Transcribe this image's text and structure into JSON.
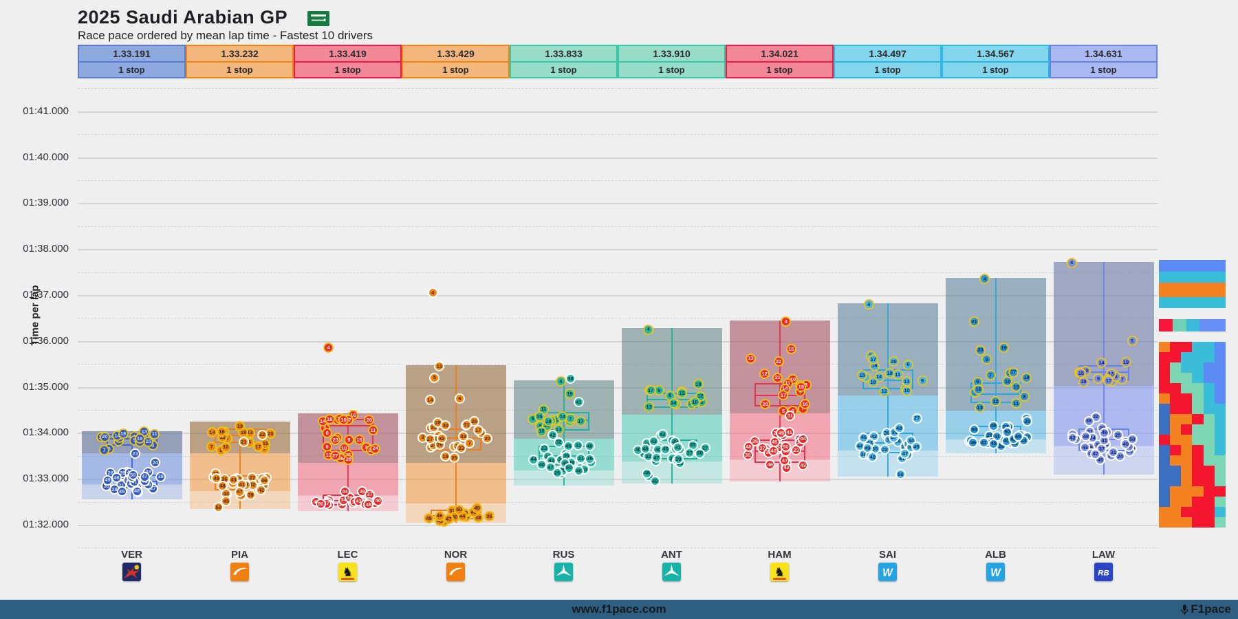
{
  "title": "2025 Saudi Arabian GP",
  "subtitle": "Race pace ordered by mean lap time - Fastest 10 drivers",
  "flag_icon": "saudi-arabia-flag",
  "footer": {
    "site": "www.f1pace.com",
    "brand": "F1pace",
    "brand_icon": "microphone-icon",
    "bar_color": "#2e5f80"
  },
  "tire_border_legend": {
    "medium": "#e7c31e",
    "hard": "#ffffff"
  },
  "chart_data": {
    "type": "boxplot-scatter",
    "title": "2025 Saudi Arabian GP",
    "subtitle": "Race pace ordered by mean lap time - Fastest 10 drivers",
    "y_axis": {
      "label": "Time per lap",
      "tick_labels": [
        "01:41.000",
        "01:40.000",
        "01:39.000",
        "01:38.000",
        "01:37.000",
        "01:36.000",
        "01:35.000",
        "01:34.000",
        "01:33.000",
        "01:32.000"
      ],
      "tick_seconds": [
        101,
        100,
        99,
        98,
        97,
        96,
        95,
        94,
        93,
        92
      ],
      "ylim_seconds": [
        91.5,
        101.5
      ],
      "grid": "solid at seconds, dashed at half-seconds"
    },
    "x_categories": [
      "VER",
      "PIA",
      "LEC",
      "NOR",
      "RUS",
      "ANT",
      "HAM",
      "SAI",
      "ALB",
      "LAW"
    ],
    "drivers": [
      {
        "code": "VER",
        "team": "red-bull",
        "mean": "1.33.191",
        "stops": "1 stop",
        "header": {
          "bg": "#8da9dd",
          "border": "#5b79d4"
        },
        "dot": {
          "fill": "#3457c0",
          "text": "#cfe0f8"
        },
        "box_color": "#3b64d8",
        "band1": "rgba(92,109,150,0.62)",
        "band2": "rgba(108,144,222,0.34)",
        "stints": [
          {
            "tire": "medium",
            "laps": [
              4,
              20
            ],
            "stats": [
              93.55,
              93.72,
              93.87,
              93.97,
              94.03
            ],
            "fixed": {
              "7": 93.62,
              "6": 93.65
            }
          },
          {
            "tire": "hard",
            "laps": [
              21,
              50
            ],
            "stats": [
              92.55,
              92.8,
              92.95,
              93.1,
              93.28
            ],
            "fixed": {
              "23": 93.55,
              "24": 93.35
            }
          }
        ]
      },
      {
        "code": "PIA",
        "team": "mclaren",
        "mean": "1.33.232",
        "stops": "1 stop",
        "header": {
          "bg": "#f3b77e",
          "border": "#ee8712"
        },
        "dot": {
          "fill": "#ef8512",
          "text": "#4a2a05"
        },
        "box_color": "#ee7d12",
        "band1": "rgba(150,108,62,0.60)",
        "band2": "rgba(242,148,54,0.32)",
        "stints": [
          {
            "tire": "medium",
            "laps": [
              4,
              20
            ],
            "stats": [
              93.55,
              93.78,
              93.95,
              94.1,
              94.25
            ],
            "fixed": {
              "9": 93.62,
              "5": 93.66,
              "7": 93.7
            }
          },
          {
            "tire": "hard",
            "laps": [
              21,
              50
            ],
            "stats": [
              92.35,
              92.75,
              92.92,
              93.08,
              93.28
            ],
            "fixed": {
              "21": 93.8,
              "22": 93.96,
              "45": 92.52,
              "50": 92.38
            }
          }
        ]
      },
      {
        "code": "LEC",
        "team": "ferrari",
        "mean": "1.33.419",
        "stops": "1 stop",
        "header": {
          "bg": "#f28798",
          "border": "#ec1a48"
        },
        "dot": {
          "fill": "#f22828",
          "text": "#ffecec"
        },
        "box_color": "#e8304c",
        "band1": "rgba(168,88,106,0.62)",
        "band2": "rgba(246,96,120,0.30)",
        "stints": [
          {
            "tire": "medium",
            "laps": [
              2,
              28
            ],
            "stats": [
              93.35,
              93.6,
              94.15,
              94.3,
              94.42
            ],
            "fixed": {
              "4": 95.85,
              "21": 93.9,
              "22": 93.62,
              "23": 93.85,
              "24": 93.66,
              "25": 93.52,
              "26": 93.44,
              "27": 93.5,
              "28": 93.42
            }
          },
          {
            "tire": "hard",
            "laps": [
              29,
              50
            ],
            "stats": [
              92.3,
              92.42,
              92.52,
              92.66,
              93.08
            ],
            "fixed": {
              "49": 92.5,
              "50": 92.45
            }
          }
        ]
      },
      {
        "code": "NOR",
        "team": "mclaren",
        "mean": "1.33.429",
        "stops": "1 stop",
        "header": {
          "bg": "#f3b77e",
          "border": "#ee8712"
        },
        "dot": {
          "fill": "#ef8512",
          "text": "#4a2a05"
        },
        "box_color": "#ee7d12",
        "band1": "rgba(150,108,62,0.60)",
        "band2": "rgba(242,148,54,0.32)",
        "stints": [
          {
            "tire": "hard",
            "laps": [
              4,
              33
            ],
            "stats": [
              93.35,
              93.62,
              93.88,
              94.1,
              95.48
            ],
            "fixed": {
              "4": 97.05,
              "13": 95.45,
              "5": 95.2,
              "6": 94.75,
              "14": 94.72
            }
          },
          {
            "tire": "medium",
            "laps": [
              34,
              50
            ],
            "stats": [
              92.05,
              92.12,
              92.2,
              92.33,
              92.46
            ],
            "fixed": {
              "41": 92.06,
              "43": 92.08
            }
          }
        ]
      },
      {
        "code": "RUS",
        "team": "mercedes",
        "mean": "1.33.833",
        "stops": "1 stop",
        "header": {
          "bg": "#97dcc6",
          "border": "#38c9a8"
        },
        "dot": {
          "fill": "#23b8a8",
          "text": "#08332c"
        },
        "box_color": "#1cb29a",
        "band1": "rgba(104,138,136,0.60)",
        "band2": "rgba(56,200,176,0.28)",
        "stints": [
          {
            "tire": "medium",
            "laps": [
              4,
              19
            ],
            "stats": [
              93.87,
              94.05,
              94.28,
              94.45,
              95.15
            ],
            "fixed": {
              "4": 95.12,
              "19": 94.85
            }
          },
          {
            "tire": "hard",
            "laps": [
              20,
              50
            ],
            "stats": [
              92.85,
              93.28,
              93.5,
              93.72,
              95.2
            ],
            "fixed": {
              "38": 95.18,
              "41": 94.67,
              "42": 93.95
            }
          }
        ]
      },
      {
        "code": "ANT",
        "team": "mercedes",
        "mean": "1.33.910",
        "stops": "1 stop",
        "header": {
          "bg": "#97dcc6",
          "border": "#38c9a8"
        },
        "dot": {
          "fill": "#23b8a8",
          "text": "#08332c"
        },
        "box_color": "#1cb29a",
        "band1": "rgba(104,138,136,0.60)",
        "band2": "rgba(56,200,176,0.28)",
        "stints": [
          {
            "tire": "medium",
            "laps": [
              4,
              18
            ],
            "stats": [
              94.4,
              94.55,
              94.72,
              94.88,
              96.28
            ],
            "fixed": {
              "4": 96.25,
              "18": 95.06,
              "17": 94.92
            }
          },
          {
            "tire": "hard",
            "laps": [
              19,
              50
            ],
            "stats": [
              92.9,
              93.42,
              93.62,
              93.86,
              94.05
            ],
            "fixed": {
              "49": 92.95,
              "44": 93.05,
              "46": 93.12
            }
          }
        ]
      },
      {
        "code": "HAM",
        "team": "ferrari",
        "mean": "1.34.021",
        "stops": "1 stop",
        "header": {
          "bg": "#f28798",
          "border": "#ec1a48"
        },
        "dot": {
          "fill": "#f22828",
          "text": "#ffecec"
        },
        "box_color": "#e8304c",
        "band1": "rgba(168,88,106,0.62)",
        "band2": "rgba(246,96,120,0.30)",
        "stints": [
          {
            "tire": "medium",
            "laps": [
              4,
              22
            ],
            "stats": [
              94.42,
              94.58,
              94.82,
              95.08,
              96.45
            ],
            "fixed": {
              "4": 96.42,
              "15": 95.82,
              "13": 95.62,
              "22": 95.55,
              "12": 95.28
            }
          },
          {
            "tire": "hard",
            "laps": [
              23,
              50
            ],
            "stats": [
              92.95,
              93.35,
              93.6,
              93.85,
              94.4
            ],
            "fixed": {
              "31": 94.37,
              "25": 94.0
            }
          }
        ]
      },
      {
        "code": "SAI",
        "team": "williams",
        "mean": "1.34.497",
        "stops": "1 stop",
        "header": {
          "bg": "#84d6ec",
          "border": "#2eb8e4"
        },
        "dot": {
          "fill": "#49b5e8",
          "text": "#0a2e48"
        },
        "box_color": "#2aa6de",
        "band1": "rgba(96,134,156,0.60)",
        "band2": "rgba(70,178,232,0.30)",
        "stints": [
          {
            "tire": "medium",
            "laps": [
              4,
              20
            ],
            "stats": [
              94.82,
              94.95,
              95.15,
              95.38,
              96.82
            ],
            "fixed": {
              "4": 96.8,
              "5": 95.68,
              "17": 95.6,
              "20": 95.55
            }
          },
          {
            "tire": "hard",
            "laps": [
              21,
              50
            ],
            "stats": [
              93.05,
              93.55,
              93.78,
              94.0,
              94.35
            ],
            "fixed": {
              "27": 94.32,
              "50": 93.1
            }
          }
        ]
      },
      {
        "code": "ALB",
        "team": "williams",
        "mean": "1.34.567",
        "stops": "1 stop",
        "header": {
          "bg": "#84d6ec",
          "border": "#2eb8e4"
        },
        "dot": {
          "fill": "#2e96d6",
          "text": "#0a2e48"
        },
        "box_color": "#2aa6de",
        "band1": "rgba(96,134,156,0.60)",
        "band2": "rgba(70,178,232,0.30)",
        "stints": [
          {
            "tire": "medium",
            "laps": [
              4,
              21
            ],
            "stats": [
              94.48,
              94.65,
              94.85,
              95.1,
              97.38
            ],
            "fixed": {
              "4": 97.35,
              "21": 96.42,
              "19": 95.85,
              "20": 95.8,
              "5": 95.6,
              "14": 95.3,
              "7": 95.25,
              "18": 95.2
            }
          },
          {
            "tire": "hard",
            "laps": [
              22,
              50
            ],
            "stats": [
              93.55,
              93.8,
              93.95,
              94.15,
              94.38
            ],
            "fixed": {
              "24": 94.32,
              "25": 94.25
            }
          }
        ]
      },
      {
        "code": "LAW",
        "team": "racing-bulls",
        "mean": "1.34.631",
        "stops": "1 stop",
        "header": {
          "bg": "#aab9f2",
          "border": "#6a80e6"
        },
        "dot": {
          "fill": "#7c90e8",
          "text": "#14255e"
        },
        "box_color": "#6a82e8",
        "band1": "rgba(112,124,168,0.62)",
        "band2": "rgba(124,146,238,0.34)",
        "stints": [
          {
            "tire": "medium",
            "laps": [
              4,
              19
            ],
            "stats": [
              95.02,
              95.15,
              95.32,
              95.48,
              97.72
            ],
            "fixed": {
              "4": 97.7,
              "5": 96.0
            }
          },
          {
            "tire": "hard",
            "laps": [
              20,
              50
            ],
            "stats": [
              93.1,
              93.6,
              93.85,
              94.1,
              94.42
            ],
            "fixed": {
              "22": 94.35
            }
          }
        ]
      }
    ],
    "legend_minis": {
      "top_stripes": [
        [
          "#5c8bf5",
          17
        ],
        [
          "#38bcd8",
          16
        ],
        [
          "#f58220",
          21
        ],
        [
          "#38bcd8",
          16
        ]
      ],
      "mid_strip": [
        [
          "#f7183a",
          21
        ],
        [
          "#72d1b2",
          20
        ],
        [
          "#3cbcdc",
          20
        ],
        [
          "#688ff7",
          39
        ]
      ],
      "mosaic_palette": {
        "R": "#f4152e",
        "O": "#f58220",
        "C": "#3bbcd9",
        "A": "#7dd6b4",
        "B": "#5c8bf5",
        "S": "#3a6fc1"
      },
      "mosaic_rows": [
        "ORRCCB",
        "RRCCCB",
        "RACCBB",
        "RAACBB",
        "RRAACB",
        "ORRACB",
        "SRRACC",
        "SOORAC",
        "SORAAC",
        "ROOAAC",
        "SRORAC",
        "SOORAA",
        "SSORRA",
        "SSORRA",
        "SOOORR",
        "SOORRA",
        "OORRRC",
        "OOORRA"
      ]
    }
  }
}
